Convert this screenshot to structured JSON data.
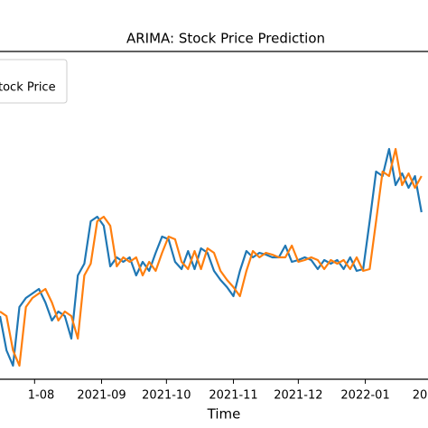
{
  "chart_data": {
    "type": "line",
    "title": "ARIMA: Stock Price Prediction",
    "x_label": "Time",
    "legend_text": "tock Price",
    "x": [
      -16,
      -13,
      -10,
      -7,
      -4,
      -1,
      2,
      5,
      8,
      11,
      14,
      17,
      20,
      23,
      26,
      29,
      32,
      35,
      38,
      41,
      44,
      47,
      50,
      53,
      56,
      59,
      62,
      65,
      68,
      71,
      74,
      77,
      80,
      83,
      86,
      89,
      92,
      95,
      98,
      101,
      104,
      107,
      110,
      113,
      116,
      119,
      122,
      125,
      128,
      131,
      134,
      137,
      140,
      143,
      146,
      149,
      152,
      155,
      158,
      161,
      164,
      167,
      170,
      173,
      176,
      179
    ],
    "series": [
      {
        "color": "#1f77b4",
        "values": [
          70,
          32,
          15,
          80,
          90,
          95,
          100,
          85,
          65,
          75,
          70,
          45,
          115,
          128,
          175,
          180,
          170,
          125,
          135,
          130,
          135,
          115,
          130,
          120,
          140,
          158,
          155,
          130,
          122,
          142,
          122,
          145,
          140,
          120,
          110,
          102,
          92,
          120,
          142,
          135,
          140,
          138,
          135,
          135,
          148,
          130,
          132,
          135,
          132,
          122,
          132,
          128,
          132,
          122,
          135,
          120,
          122,
          175,
          230,
          225,
          255,
          215,
          228,
          212,
          225,
          185
        ]
      },
      {
        "color": "#ff7f0e",
        "values": [
          75,
          70,
          32,
          15,
          80,
          90,
          95,
          100,
          85,
          65,
          75,
          70,
          45,
          115,
          128,
          175,
          180,
          170,
          125,
          135,
          130,
          135,
          115,
          130,
          120,
          140,
          158,
          155,
          130,
          122,
          142,
          122,
          145,
          140,
          120,
          110,
          102,
          92,
          120,
          142,
          135,
          140,
          138,
          135,
          135,
          148,
          130,
          132,
          135,
          132,
          122,
          132,
          128,
          132,
          122,
          135,
          120,
          122,
          175,
          230,
          225,
          255,
          215,
          228,
          212,
          225
        ]
      }
    ],
    "xlim": [
      -16,
      182
    ],
    "ylim": [
      0,
      363
    ],
    "xticks": [
      {
        "value": 0,
        "label": "1-08"
      },
      {
        "value": 31,
        "label": "2021-09"
      },
      {
        "value": 61,
        "label": "2021-10"
      },
      {
        "value": 92,
        "label": "2021-11"
      },
      {
        "value": 122,
        "label": "2021-12"
      },
      {
        "value": 153,
        "label": "2022-01"
      },
      {
        "value": 184,
        "label": "20"
      }
    ]
  }
}
